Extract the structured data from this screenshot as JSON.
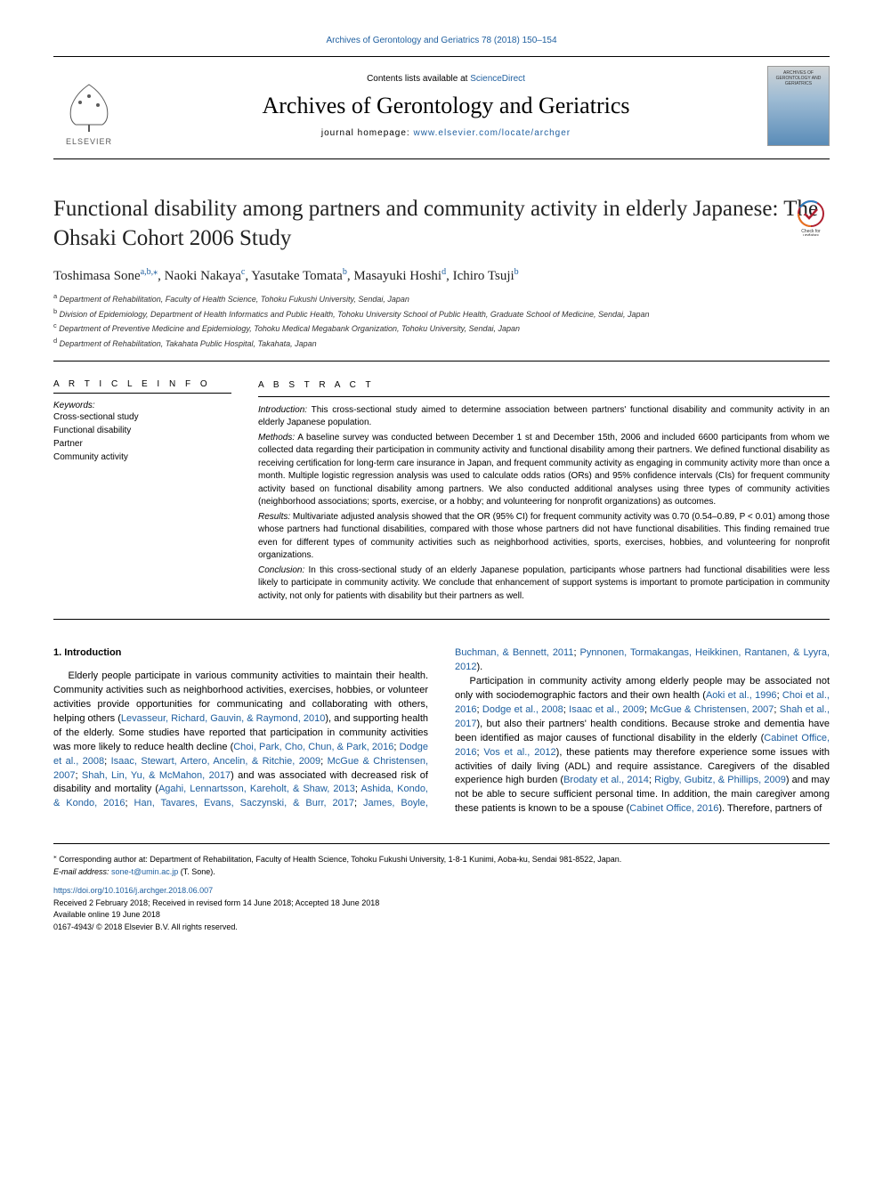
{
  "header": {
    "top_link_text": "Archives of Gerontology and Geriatrics 78 (2018) 150–154",
    "contents_prefix": "Contents lists available at ",
    "contents_link": "ScienceDirect",
    "journal_name": "Archives of Gerontology and Geriatrics",
    "homepage_prefix": "journal homepage: ",
    "homepage_link": "www.elsevier.com/locate/archger",
    "publisher_name": "ELSEVIER",
    "cover_title": "ARCHIVES OF GERONTOLOGY AND GERIATRICS"
  },
  "article": {
    "title": "Functional disability among partners and community activity in elderly Japanese: The Ohsaki Cohort 2006 Study",
    "check_updates_label": "Check for updates",
    "authors_html": "Toshimasa Sone<sup>a,b,</sup><sup>⁎</sup>, Naoki Nakaya<sup>c</sup>, Yasutake Tomata<sup>b</sup>, Masayuki Hoshi<sup>d</sup>, Ichiro Tsuji<sup>b</sup>",
    "affiliations": [
      {
        "sup": "a",
        "text": "Department of Rehabilitation, Faculty of Health Science, Tohoku Fukushi University, Sendai, Japan"
      },
      {
        "sup": "b",
        "text": "Division of Epidemiology, Department of Health Informatics and Public Health, Tohoku University School of Public Health, Graduate School of Medicine, Sendai, Japan"
      },
      {
        "sup": "c",
        "text": "Department of Preventive Medicine and Epidemiology, Tohoku Medical Megabank Organization, Tohoku University, Sendai, Japan"
      },
      {
        "sup": "d",
        "text": "Department of Rehabilitation, Takahata Public Hospital, Takahata, Japan"
      }
    ]
  },
  "info": {
    "heading": "A R T I C L E  I N F O",
    "keywords_label": "Keywords:",
    "keywords": [
      "Cross-sectional study",
      "Functional disability",
      "Partner",
      "Community activity"
    ]
  },
  "abstract": {
    "heading": "A B S T R A C T",
    "sections": [
      {
        "label": "Introduction:",
        "text": "This cross-sectional study aimed to determine association between partners' functional disability and community activity in an elderly Japanese population."
      },
      {
        "label": "Methods:",
        "text": "A baseline survey was conducted between December 1 st and December 15th, 2006 and included 6600 participants from whom we collected data regarding their participation in community activity and functional disability among their partners. We defined functional disability as receiving certification for long-term care insurance in Japan, and frequent community activity as engaging in community activity more than once a month. Multiple logistic regression analysis was used to calculate odds ratios (ORs) and 95% confidence intervals (CIs) for frequent community activity based on functional disability among partners. We also conducted additional analyses using three types of community activities (neighborhood associations; sports, exercise, or a hobby; and volunteering for nonprofit organizations) as outcomes."
      },
      {
        "label": "Results:",
        "text": "Multivariate adjusted analysis showed that the OR (95% CI) for frequent community activity was 0.70 (0.54–0.89, P < 0.01) among those whose partners had functional disabilities, compared with those whose partners did not have functional disabilities. This finding remained true even for different types of community activities such as neighborhood activities, sports, exercises, hobbies, and volunteering for nonprofit organizations."
      },
      {
        "label": "Conclusion:",
        "text": "In this cross-sectional study of an elderly Japanese population, participants whose partners had functional disabilities were less likely to participate in community activity. We conclude that enhancement of support systems is important to promote participation in community activity, not only for patients with disability but their partners as well."
      }
    ]
  },
  "body": {
    "section_heading": "1. Introduction",
    "col1_p1_pre": "Elderly people participate in various community activities to maintain their health. Community activities such as neighborhood activities, exercises, hobbies, or volunteer activities provide opportunities for communicating and collaborating with others, helping others (",
    "col1_p1_link1": "Levasseur, Richard, Gauvin, & Raymond, 2010",
    "col1_p1_mid1": "), and supporting health of the elderly. Some studies have reported that participation in community activities was more likely to reduce health decline (",
    "col1_p1_link2": "Choi, Park, Cho, Chun, & Park, 2016",
    "col1_p1_sep1": "; ",
    "col1_p1_link3": "Dodge et al., 2008",
    "col1_p1_sep2": "; ",
    "col1_p1_link4": "Isaac, Stewart, Artero, Ancelin, & Ritchie, 2009",
    "col1_p1_sep3": "; ",
    "col1_p1_link5": "McGue & Christensen, 2007",
    "col1_p1_sep4": "; ",
    "col1_p1_link6": "Shah, Lin, Yu, & McMahon, 2017",
    "col1_p1_mid2": ") and was associated with decreased risk of disability and mortality (",
    "col1_p1_link7": "Agahi, Lennartsson, Kareholt, & Shaw, 2013",
    "col1_p1_sep5": "; ",
    "col1_p1_link8": "Ashida, Kondo, & Kondo, 2016",
    "col1_p1_sep6": "; ",
    "col1_p1_link9": "Han, Tavares, Evans, Saczynski, & Burr, 2017",
    "col1_p1_sep7": "; ",
    "col2_link1": "James, Boyle, Buchman, & Bennett, 2011",
    "col2_sep1": "; ",
    "col2_link2": "Pynnonen, Tormakangas, Heikkinen, Rantanen, & Lyyra, 2012",
    "col2_p1_end": ").",
    "col2_p2_pre": "Participation in community activity among elderly people may be associated not only with sociodemographic factors and their own health (",
    "col2_p2_link1": "Aoki et al., 1996",
    "col2_p2_sep1": "; ",
    "col2_p2_link2": "Choi et al., 2016",
    "col2_p2_sep2": "; ",
    "col2_p2_link3": "Dodge et al., 2008",
    "col2_p2_sep3": "; ",
    "col2_p2_link4": "Isaac et al., 2009",
    "col2_p2_sep4": "; ",
    "col2_p2_link5": "McGue & Christensen, 2007",
    "col2_p2_sep5": "; ",
    "col2_p2_link6": "Shah et al., 2017",
    "col2_p2_mid1": "), but also their partners' health conditions. Because stroke and dementia have been identified as major causes of functional disability in the elderly (",
    "col2_p2_link7": "Cabinet Office, 2016",
    "col2_p2_sep6": "; ",
    "col2_p2_link8": "Vos et al., 2012",
    "col2_p2_mid2": "), these patients may therefore experience some issues with activities of daily living (ADL) and require assistance. Caregivers of the disabled experience high burden (",
    "col2_p2_link9": "Brodaty et al., 2014",
    "col2_p2_sep7": "; ",
    "col2_p2_link10": "Rigby, Gubitz, & Phillips, 2009",
    "col2_p2_mid3": ") and may not be able to secure sufficient personal time. In addition, the main caregiver among these patients is known to be a spouse (",
    "col2_p2_link11": "Cabinet Office, 2016",
    "col2_p2_end": "). Therefore, partners of"
  },
  "footer": {
    "corr_marker": "⁎",
    "corr_text": "Corresponding author at: Department of Rehabilitation, Faculty of Health Science, Tohoku Fukushi University, 1-8-1 Kunimi, Aoba-ku, Sendai 981-8522, Japan.",
    "email_label": "E-mail address: ",
    "email": "sone-t@umin.ac.jp",
    "email_suffix": " (T. Sone).",
    "doi": "https://doi.org/10.1016/j.archger.2018.06.007",
    "received": "Received 2 February 2018; Received in revised form 14 June 2018; Accepted 18 June 2018",
    "online": "Available online 19 June 2018",
    "copyright": "0167-4943/ © 2018 Elsevier B.V. All rights reserved."
  },
  "colors": {
    "link": "#2060a0",
    "text": "#000000",
    "elsevier_orange": "#e9711c"
  }
}
